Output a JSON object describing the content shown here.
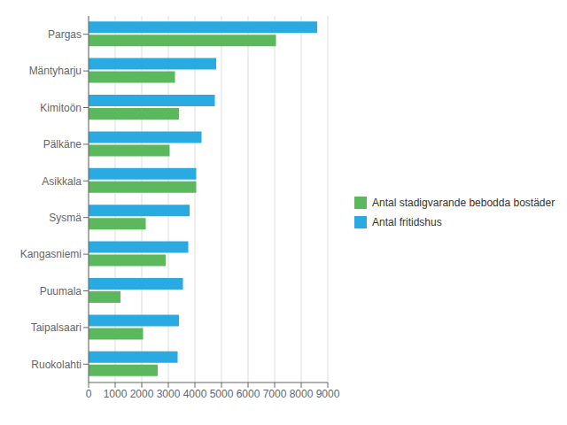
{
  "chart_data": {
    "type": "bar",
    "orientation": "horizontal",
    "categories": [
      "Pargas",
      "Mäntyharju",
      "Kimitoön",
      "Pälkäne",
      "Asikkala",
      "Sysmä",
      "Kangasniemi",
      "Puumala",
      "Taipalsaari",
      "Ruokolahti"
    ],
    "series": [
      {
        "name": "Antal fritidshus",
        "color": "#29ABE2",
        "values": [
          8600,
          4800,
          4750,
          4250,
          4050,
          3800,
          3750,
          3550,
          3400,
          3350
        ]
      },
      {
        "name": "Antal stadigvarande bebodda bostäder",
        "color": "#5CB85C",
        "values": [
          7050,
          3250,
          3400,
          3050,
          4050,
          2150,
          2900,
          1200,
          2050,
          2600
        ]
      }
    ],
    "xlim": [
      0,
      9000
    ],
    "xticks": [
      0,
      1000,
      2000,
      3000,
      4000,
      5000,
      6000,
      7000,
      8000,
      9000
    ],
    "grid": true,
    "legend": "right"
  }
}
